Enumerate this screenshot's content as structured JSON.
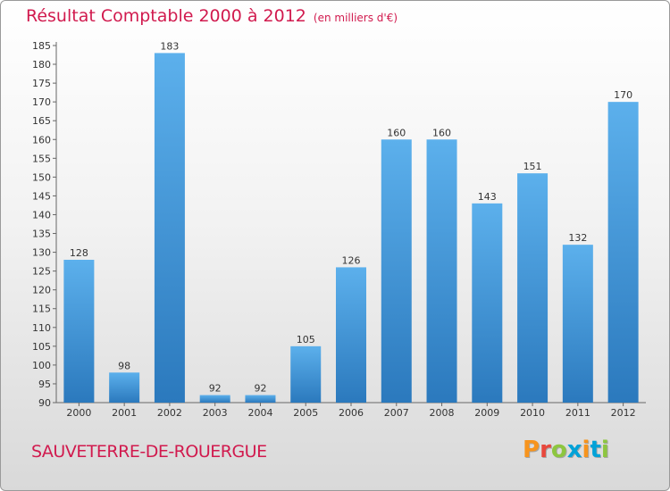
{
  "header": {
    "title": "Résultat Comptable 2000 à 2012",
    "unit": "(en milliers d'€)"
  },
  "footer": {
    "city": "SAUVETERRE-DE-ROUERGUE",
    "logo": "Proxiti",
    "logo_colors": [
      "#f7941d",
      "#e8473c",
      "#8dc63f",
      "#00a2d8",
      "#f7941d",
      "#00a2d8",
      "#8dc63f"
    ]
  },
  "chart_data": {
    "type": "bar",
    "title": "Résultat Comptable 2000 à 2012",
    "subtitle": "(en milliers d'€)",
    "xlabel": "",
    "ylabel": "",
    "categories": [
      "2000",
      "2001",
      "2002",
      "2003",
      "2004",
      "2005",
      "2006",
      "2007",
      "2008",
      "2009",
      "2010",
      "2011",
      "2012"
    ],
    "values": [
      128,
      98,
      183,
      92,
      92,
      105,
      126,
      160,
      160,
      143,
      151,
      132,
      170
    ],
    "ylim": [
      90,
      185
    ],
    "yticks": [
      90,
      95,
      100,
      105,
      110,
      115,
      120,
      125,
      130,
      135,
      140,
      145,
      150,
      155,
      160,
      165,
      170,
      175,
      180,
      185
    ],
    "grid": false,
    "bar_color": "#3f95d6",
    "title_color": "#d11a4e"
  }
}
